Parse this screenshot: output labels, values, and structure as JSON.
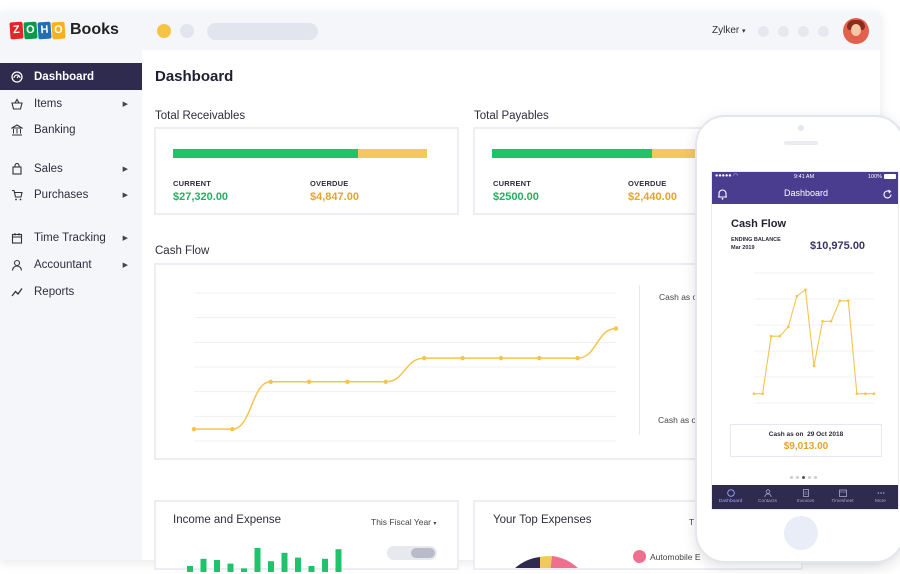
{
  "brand": {
    "logo_letters": [
      "Z",
      "O",
      "H",
      "O"
    ],
    "logo_colors": [
      "#e42527",
      "#226db4",
      "#089949",
      "#f9b21d"
    ],
    "product": "Books"
  },
  "topbar": {
    "org_name": "Zylker"
  },
  "sidebar": {
    "items": [
      {
        "label": "Dashboard",
        "icon": "dashboard-icon",
        "submenu": false,
        "active": true
      },
      {
        "label": "Items",
        "icon": "basket-icon",
        "submenu": true
      },
      {
        "label": "Banking",
        "icon": "bank-icon",
        "submenu": false
      },
      {
        "label": "Sales",
        "icon": "shopping-bag-icon",
        "submenu": true
      },
      {
        "label": "Purchases",
        "icon": "cart-icon",
        "submenu": true
      },
      {
        "label": "Time Tracking",
        "icon": "calendar-icon",
        "submenu": true
      },
      {
        "label": "Accountant",
        "icon": "user-icon",
        "submenu": true
      },
      {
        "label": "Reports",
        "icon": "trend-icon",
        "submenu": false
      }
    ]
  },
  "main": {
    "title": "Dashboard",
    "receivables": {
      "title": "Total Receivables",
      "current_label": "CURRENT",
      "current_value": "$27,320.00",
      "overdue_label": "OVERDUE",
      "overdue_value": "$4,847.00",
      "current_fraction": 0.73
    },
    "payables": {
      "title": "Total Payables",
      "current_label": "CURRENT",
      "current_value": "$2500.00",
      "overdue_label": "OVERDUE",
      "overdue_value": "$2,440.00",
      "current_fraction": 0.63
    },
    "cashflow": {
      "title": "Cash Flow",
      "label_top": "Cash as o",
      "label_bottom": "Cash as o"
    },
    "income_expense": {
      "title": "Income and Expense",
      "period": "This Fiscal Year"
    },
    "top_expenses": {
      "title": "Your Top Expenses",
      "period_partial": "T",
      "legend_first": "Automobile E"
    }
  },
  "phone": {
    "status_time": "9:41 AM",
    "status_battery": "100%",
    "nav_title": "Dashboard",
    "card_title": "Cash Flow",
    "ending_balance_label": "ENDING BALANCE",
    "ending_balance_date": "Mar 2019",
    "ending_balance_value": "$10,975.00",
    "cash_as_on_label": "Cash as on",
    "cash_as_on_date": "29 Oct 2018",
    "cash_as_on_value": "$9,013.00",
    "tabs": [
      {
        "label": "Dashboard",
        "icon": "dashboard-icon"
      },
      {
        "label": "Contacts",
        "icon": "contacts-icon"
      },
      {
        "label": "Invoices",
        "icon": "invoice-icon"
      },
      {
        "label": "Timesheet",
        "icon": "timesheet-icon"
      },
      {
        "label": "More",
        "icon": "more-icon"
      }
    ]
  },
  "colors": {
    "accent_dark": "#2e2b4f",
    "phone_header": "#4a3d8f",
    "bar_green": "#1fc46a",
    "bar_yellow": "#f0ca5d",
    "line_yellow": "#f5c44d"
  },
  "chart_data": [
    {
      "type": "line",
      "name": "cashflow-desktop",
      "x": [
        1,
        2,
        3,
        4,
        5,
        6,
        7,
        8,
        9,
        10,
        11,
        12
      ],
      "values": [
        2,
        2,
        10,
        10,
        10,
        10,
        14,
        14,
        14,
        14,
        14,
        19
      ],
      "xlabel": "",
      "ylabel": "",
      "ylim": [
        0,
        25
      ],
      "grid": true
    },
    {
      "type": "line",
      "name": "cashflow-mobile",
      "x": [
        1,
        2,
        3,
        4,
        5,
        6,
        7,
        8,
        9,
        10,
        11,
        12,
        13,
        14,
        15
      ],
      "values": [
        1,
        1,
        7.2,
        7.2,
        8.2,
        11.5,
        12.2,
        4,
        8.8,
        8.8,
        11,
        11,
        1,
        1,
        1
      ],
      "xlabel": "",
      "ylabel": "",
      "ylim": [
        0,
        14
      ],
      "grid": true
    },
    {
      "type": "bar",
      "name": "income-expense",
      "categories": [
        "1",
        "2",
        "3",
        "4",
        "5",
        "6",
        "7",
        "8",
        "9",
        "10",
        "11",
        "12"
      ],
      "values": [
        5,
        11,
        10,
        7,
        3,
        20,
        9,
        16,
        12,
        5,
        11,
        19
      ],
      "xlabel": "",
      "ylabel": "",
      "ylim": [
        0,
        25
      ]
    }
  ]
}
